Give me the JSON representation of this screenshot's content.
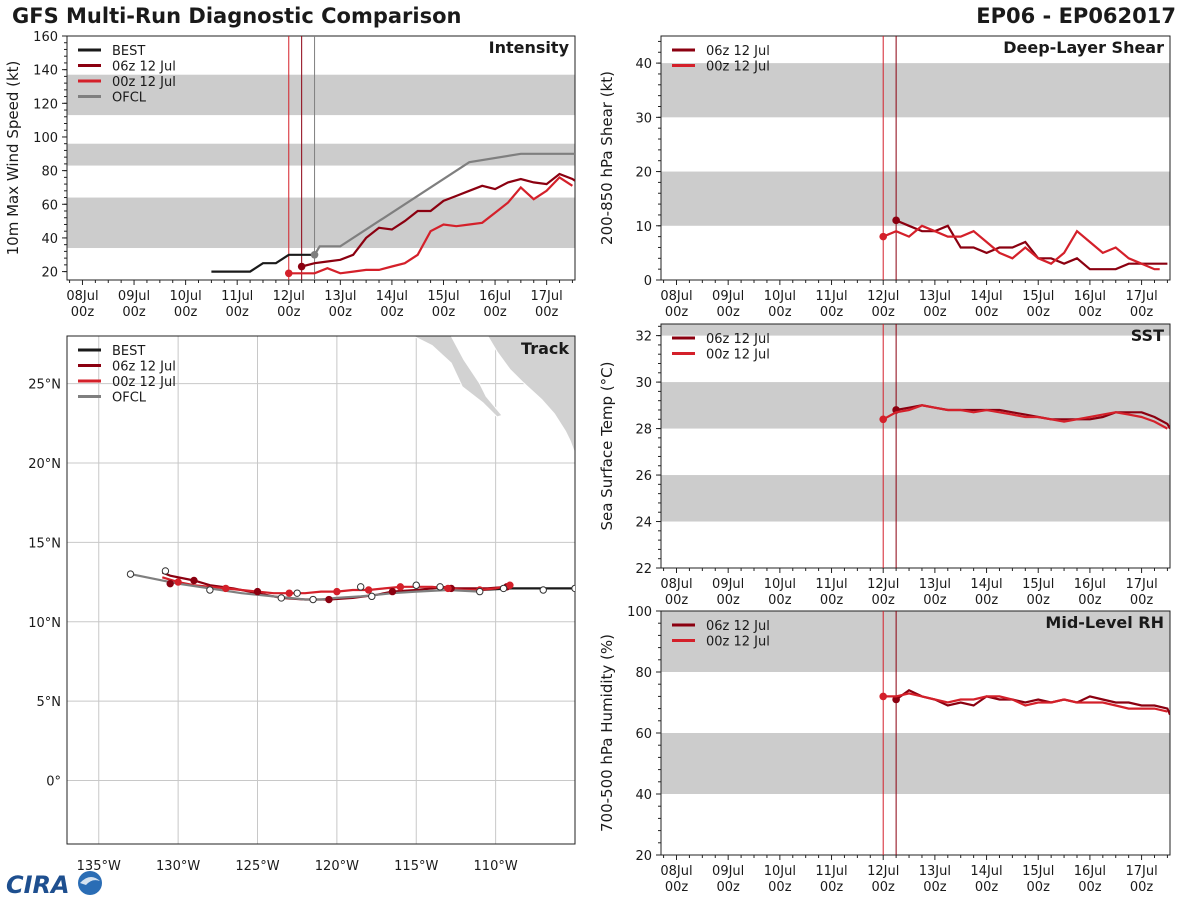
{
  "header": {
    "title": "GFS Multi-Run Diagnostic Comparison",
    "storm_id": "EP06 - EP062017"
  },
  "logo": {
    "text": "CIRA"
  },
  "colors": {
    "best": "#1a1a1a",
    "r06": "#8b0010",
    "r00": "#d4202a",
    "ofcl": "#7f7f7f",
    "band": "#cccccc",
    "grid": "#c8c8c8"
  },
  "time_axis": {
    "day_labels": [
      "08Jul",
      "09Jul",
      "10Jul",
      "11Jul",
      "12Jul",
      "13Jul",
      "14Jul",
      "15Jul",
      "16Jul",
      "17Jul"
    ],
    "hour_label": "00z",
    "day_values": [
      0,
      1,
      2,
      3,
      4,
      5,
      6,
      7,
      8,
      9
    ],
    "range": [
      -0.3,
      9.55
    ]
  },
  "chart_data": [
    {
      "id": "intensity",
      "type": "line",
      "title": "Intensity",
      "ylabel": "10m Max Wind Speed (kt)",
      "ylim": [
        15,
        160
      ],
      "yticks": [
        20,
        40,
        60,
        80,
        100,
        120,
        140,
        160
      ],
      "bands": [
        [
          34,
          64
        ],
        [
          83,
          96
        ],
        [
          113,
          137
        ]
      ],
      "vlines": [
        {
          "x": 4.0,
          "run": "r00"
        },
        {
          "x": 4.25,
          "run": "r06"
        },
        {
          "x": 4.5,
          "run": "ofcl"
        }
      ],
      "legend": [
        "BEST",
        "06z 12 Jul",
        "00z 12 Jul",
        "OFCL"
      ],
      "series": [
        {
          "name": "BEST",
          "run": "best",
          "x": [
            2.5,
            2.75,
            3.0,
            3.25,
            3.5,
            3.75,
            4.0,
            4.25,
            4.5
          ],
          "y": [
            20,
            20,
            20,
            20,
            25,
            25,
            30,
            30,
            30
          ]
        },
        {
          "name": "06z 12 Jul",
          "run": "r06",
          "x": [
            4.25,
            4.5,
            4.75,
            5.0,
            5.25,
            5.5,
            5.75,
            6.0,
            6.25,
            6.5,
            6.75,
            7.0,
            7.25,
            7.5,
            7.75,
            8.0,
            8.25,
            8.5,
            8.75,
            9.0,
            9.25,
            9.5,
            9.55
          ],
          "y": [
            23,
            25,
            26,
            27,
            30,
            40,
            46,
            45,
            50,
            56,
            56,
            62,
            65,
            68,
            71,
            69,
            73,
            75,
            73,
            72,
            78,
            75,
            74
          ],
          "marker_x": 4.25,
          "marker_y": 23
        },
        {
          "name": "00z 12 Jul",
          "run": "r00",
          "x": [
            4.0,
            4.25,
            4.5,
            4.75,
            5.0,
            5.25,
            5.5,
            5.75,
            6.0,
            6.25,
            6.5,
            6.75,
            7.0,
            7.25,
            7.5,
            7.75,
            8.0,
            8.25,
            8.5,
            8.75,
            9.0,
            9.25,
            9.5
          ],
          "y": [
            19,
            19,
            19,
            22,
            19,
            20,
            21,
            21,
            23,
            25,
            30,
            44,
            48,
            47,
            48,
            49,
            55,
            61,
            70,
            63,
            68,
            76,
            71
          ],
          "marker_x": 4.0,
          "marker_y": 19
        },
        {
          "name": "OFCL",
          "run": "ofcl",
          "x": [
            4.5,
            4.6,
            5.0,
            7.5,
            8.5,
            9.55
          ],
          "y": [
            30,
            35,
            35,
            85,
            90,
            90
          ],
          "marker_x": 4.5,
          "marker_y": 30
        }
      ]
    },
    {
      "id": "shear",
      "type": "line",
      "title": "Deep-Layer Shear",
      "ylabel": "200-850 hPa Shear (kt)",
      "ylim": [
        0,
        45
      ],
      "yticks": [
        0,
        10,
        20,
        30,
        40
      ],
      "bands": [
        [
          10,
          20
        ],
        [
          30,
          40
        ]
      ],
      "vlines": [
        {
          "x": 4.0,
          "run": "r00"
        },
        {
          "x": 4.25,
          "run": "r06"
        }
      ],
      "legend": [
        "06z 12 Jul",
        "00z 12 Jul"
      ],
      "series": [
        {
          "name": "06z 12 Jul",
          "run": "r06",
          "x": [
            4.25,
            4.5,
            4.75,
            5.0,
            5.25,
            5.5,
            5.75,
            6.0,
            6.25,
            6.5,
            6.75,
            7.0,
            7.25,
            7.5,
            7.75,
            8.0,
            8.25,
            8.5,
            8.75,
            9.0,
            9.25,
            9.5
          ],
          "y": [
            11,
            10,
            9,
            9,
            10,
            6,
            6,
            5,
            6,
            6,
            7,
            4,
            4,
            3,
            4,
            2,
            2,
            2,
            3,
            3,
            3,
            3
          ],
          "marker_x": 4.25,
          "marker_y": 11
        },
        {
          "name": "00z 12 Jul",
          "run": "r00",
          "x": [
            4.0,
            4.25,
            4.5,
            4.75,
            5.0,
            5.25,
            5.5,
            5.75,
            6.0,
            6.25,
            6.5,
            6.75,
            7.0,
            7.25,
            7.5,
            7.75,
            8.0,
            8.25,
            8.5,
            8.75,
            9.0,
            9.25,
            9.35
          ],
          "y": [
            8,
            9,
            8,
            10,
            9,
            8,
            8,
            9,
            7,
            5,
            4,
            6,
            4,
            3,
            5,
            9,
            7,
            5,
            6,
            4,
            3,
            2,
            2
          ],
          "marker_x": 4.0,
          "marker_y": 8
        }
      ]
    },
    {
      "id": "sst",
      "type": "line",
      "title": "SST",
      "ylabel": "Sea Surface Temp (°C)",
      "ylim": [
        22,
        32.5
      ],
      "yticks": [
        22,
        24,
        26,
        28,
        30,
        32
      ],
      "bands": [
        [
          24,
          26
        ],
        [
          28,
          30
        ],
        [
          32,
          33
        ]
      ],
      "vlines": [
        {
          "x": 4.0,
          "run": "r00"
        },
        {
          "x": 4.25,
          "run": "r06"
        }
      ],
      "legend": [
        "06z 12 Jul",
        "00z 12 Jul"
      ],
      "series": [
        {
          "name": "06z 12 Jul",
          "run": "r06",
          "x": [
            4.25,
            4.5,
            4.75,
            5.0,
            5.25,
            5.5,
            5.75,
            6.0,
            6.25,
            6.5,
            6.75,
            7.0,
            7.25,
            7.5,
            7.75,
            8.0,
            8.25,
            8.5,
            8.75,
            9.0,
            9.25,
            9.5,
            9.55
          ],
          "y": [
            28.8,
            28.9,
            29.0,
            28.9,
            28.8,
            28.8,
            28.8,
            28.8,
            28.8,
            28.7,
            28.6,
            28.5,
            28.4,
            28.4,
            28.4,
            28.4,
            28.5,
            28.7,
            28.7,
            28.7,
            28.5,
            28.2,
            28.0
          ],
          "marker_x": 4.25,
          "marker_y": 28.8
        },
        {
          "name": "00z 12 Jul",
          "run": "r00",
          "x": [
            4.0,
            4.25,
            4.5,
            4.75,
            5.0,
            5.25,
            5.5,
            5.75,
            6.0,
            6.25,
            6.5,
            6.75,
            7.0,
            7.25,
            7.5,
            7.75,
            8.0,
            8.25,
            8.5,
            8.75,
            9.0,
            9.25,
            9.5
          ],
          "y": [
            28.4,
            28.7,
            28.8,
            29.0,
            28.9,
            28.8,
            28.8,
            28.7,
            28.8,
            28.7,
            28.6,
            28.5,
            28.5,
            28.4,
            28.3,
            28.4,
            28.5,
            28.6,
            28.7,
            28.6,
            28.5,
            28.3,
            28.0
          ],
          "marker_x": 4.0,
          "marker_y": 28.4
        }
      ]
    },
    {
      "id": "rh",
      "type": "line",
      "title": "Mid-Level RH",
      "ylabel": "700-500 hPa Humidity (%)",
      "ylim": [
        20,
        100
      ],
      "yticks": [
        20,
        40,
        60,
        80,
        100
      ],
      "bands": [
        [
          40,
          60
        ],
        [
          80,
          100
        ]
      ],
      "vlines": [
        {
          "x": 4.0,
          "run": "r00"
        },
        {
          "x": 4.25,
          "run": "r06"
        }
      ],
      "legend": [
        "06z 12 Jul",
        "00z 12 Jul"
      ],
      "series": [
        {
          "name": "06z 12 Jul",
          "run": "r06",
          "x": [
            4.25,
            4.5,
            4.75,
            5.0,
            5.25,
            5.5,
            5.75,
            6.0,
            6.25,
            6.5,
            6.75,
            7.0,
            7.25,
            7.5,
            7.75,
            8.0,
            8.25,
            8.5,
            8.75,
            9.0,
            9.25,
            9.5,
            9.55
          ],
          "y": [
            71,
            74,
            72,
            71,
            69,
            70,
            69,
            72,
            71,
            71,
            70,
            71,
            70,
            71,
            70,
            72,
            71,
            70,
            70,
            69,
            69,
            68,
            66
          ],
          "marker_x": 4.25,
          "marker_y": 71
        },
        {
          "name": "00z 12 Jul",
          "run": "r00",
          "x": [
            4.0,
            4.25,
            4.5,
            4.75,
            5.0,
            5.25,
            5.5,
            5.75,
            6.0,
            6.25,
            6.5,
            6.75,
            7.0,
            7.25,
            7.5,
            7.75,
            8.0,
            8.25,
            8.5,
            8.75,
            9.0,
            9.25,
            9.5
          ],
          "y": [
            72,
            72,
            73,
            72,
            71,
            70,
            71,
            71,
            72,
            72,
            71,
            69,
            70,
            70,
            71,
            70,
            70,
            70,
            69,
            68,
            68,
            68,
            67
          ],
          "marker_x": 4.0,
          "marker_y": 72
        }
      ]
    },
    {
      "id": "track",
      "type": "scatter",
      "title": "Track",
      "xlim": [
        -137,
        -105
      ],
      "ylim": [
        -4,
        28
      ],
      "xticks": [
        -135,
        -130,
        -125,
        -120,
        -115,
        -110
      ],
      "xtick_labels": [
        "135°W",
        "130°W",
        "125°W",
        "120°W",
        "115°W",
        "110°W"
      ],
      "yticks": [
        0,
        5,
        10,
        15,
        20,
        25
      ],
      "ytick_labels": [
        "0°",
        "5°N",
        "10°N",
        "15°N",
        "20°N",
        "25°N"
      ],
      "legend": [
        "BEST",
        "06z 12 Jul",
        "00z 12 Jul",
        "OFCL"
      ],
      "series": [
        {
          "name": "BEST",
          "run": "best",
          "lon": [
            -105,
            -107,
            -109,
            -111
          ],
          "lat": [
            12.1,
            12.1,
            12.1,
            12.0
          ]
        },
        {
          "name": "06z 12 Jul",
          "run": "r06",
          "lon": [
            -109.3,
            -110.5,
            -111.5,
            -112.5,
            -113,
            -114,
            -115,
            -116.5,
            -117.5,
            -119,
            -120.5,
            -122,
            -123.5,
            -125,
            -126.5,
            -128,
            -129,
            -130.5,
            -131
          ],
          "lat": [
            12.2,
            12.1,
            12.1,
            12.1,
            12.2,
            12.1,
            12.0,
            11.9,
            11.7,
            11.5,
            11.4,
            11.4,
            11.5,
            11.8,
            12.1,
            12.3,
            12.6,
            12.9,
            13.1
          ],
          "dots_lon": [
            -109.3,
            -112.8,
            -116.5,
            -120.5,
            -125,
            -129,
            -130.5
          ],
          "dots_lat": [
            12.2,
            12.1,
            11.9,
            11.4,
            11.9,
            12.6,
            12.4
          ]
        },
        {
          "name": "00z 12 Jul",
          "run": "r00",
          "lon": [
            -109.1,
            -110,
            -111,
            -112,
            -113,
            -114,
            -115,
            -116,
            -117,
            -118,
            -119,
            -120,
            -121,
            -122,
            -123,
            -124,
            -125,
            -126,
            -127,
            -128,
            -129,
            -130,
            -131
          ],
          "lat": [
            12.3,
            12.1,
            12.0,
            12.0,
            12.1,
            12.2,
            12.2,
            12.2,
            12.1,
            12.0,
            12.0,
            11.9,
            11.9,
            11.8,
            11.8,
            11.8,
            11.9,
            12.0,
            12.1,
            12.2,
            12.3,
            12.5,
            12.8
          ],
          "dots_lon": [
            -109.1,
            -111,
            -113,
            -116,
            -118,
            -120,
            -123,
            -127,
            -130
          ],
          "dots_lat": [
            12.3,
            12.0,
            12.1,
            12.2,
            12.0,
            11.9,
            11.8,
            12.1,
            12.5
          ]
        },
        {
          "name": "OFCL",
          "run": "ofcl",
          "lon": [
            -111,
            -113,
            -115,
            -116.5,
            -117.5,
            -118.5,
            -120,
            -121,
            -122,
            -123,
            -124,
            -126,
            -128,
            -130,
            -133
          ],
          "lat": [
            11.9,
            12.0,
            11.9,
            11.8,
            11.7,
            11.6,
            11.5,
            11.4,
            11.4,
            11.5,
            11.6,
            11.8,
            12.1,
            12.4,
            13.0
          ],
          "dots_lon": [
            -111,
            -113.5,
            -115,
            -117.8,
            -118.5,
            -121.5,
            -122.5,
            -123.5,
            -128,
            -130.8,
            -133
          ],
          "dots_lat": [
            11.9,
            12.2,
            12.3,
            11.6,
            12.2,
            11.4,
            11.8,
            11.5,
            12.0,
            13.2,
            13.0
          ],
          "open_dots": true
        },
        {
          "name": "BEST-dots",
          "run": "best",
          "lon": [
            -105,
            -107,
            -109.5
          ],
          "lat": [
            12.1,
            12.0,
            12.1
          ],
          "open_dots": true
        }
      ]
    }
  ]
}
